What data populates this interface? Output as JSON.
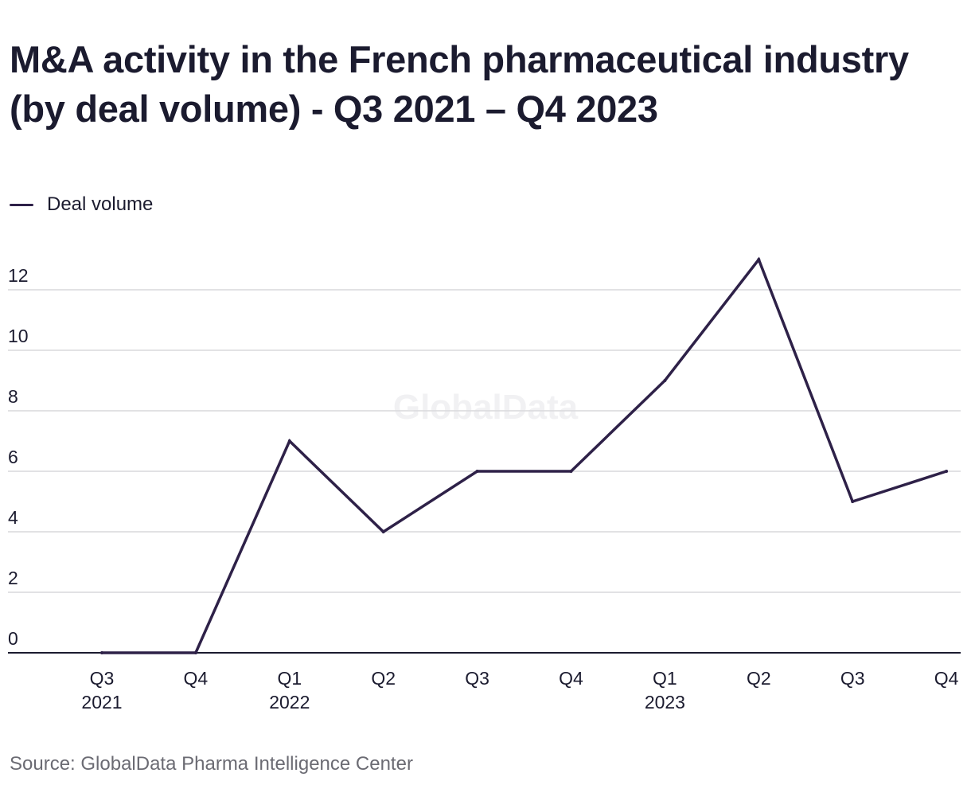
{
  "title": "M&A activity in the French pharmaceutical industry (by deal volume) - Q3 2021 – Q4 2023",
  "watermark": "GlobalData",
  "source": "Source: GlobalData Pharma Intelligence Center",
  "colors": {
    "line": "#2e2148",
    "grid": "#d9d9dc",
    "axis": "#1b1b2f"
  },
  "chart_data": {
    "type": "line",
    "categories": [
      "Q3",
      "Q4",
      "Q1",
      "Q2",
      "Q3",
      "Q4",
      "Q1",
      "Q2",
      "Q3",
      "Q4"
    ],
    "year_labels": [
      "2021",
      "",
      "2022",
      "",
      "",
      "",
      "2023",
      "",
      "",
      ""
    ],
    "series": [
      {
        "name": "Deal volume",
        "values": [
          0,
          0,
          7,
          4,
          6,
          6,
          9,
          13,
          5,
          6
        ]
      }
    ],
    "yticks": [
      0,
      2,
      4,
      6,
      8,
      10,
      12
    ],
    "ylim": [
      0,
      13
    ],
    "grid": true,
    "legend": "top-left"
  }
}
